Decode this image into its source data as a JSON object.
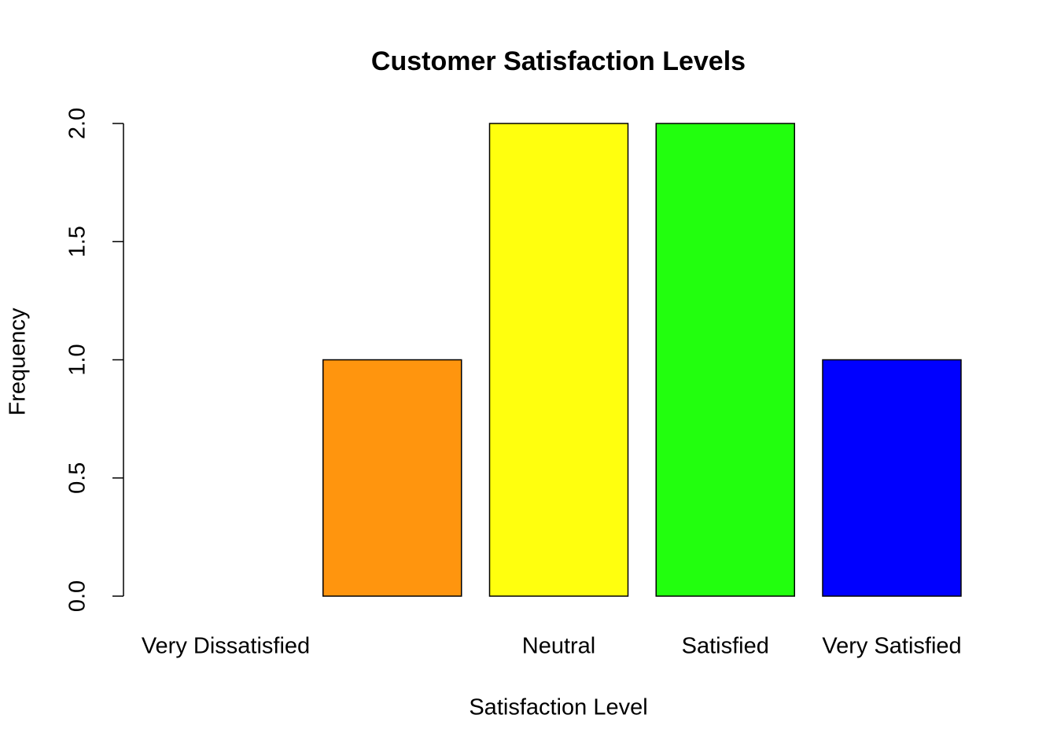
{
  "chart_data": {
    "type": "bar",
    "title": "Customer Satisfaction Levels",
    "x_label": "Satisfaction Level",
    "y_label": "Frequency",
    "categories": [
      "Very Dissatisfied",
      null,
      "Neutral",
      "Satisfied",
      "Very Satisfied"
    ],
    "values": [
      0,
      1,
      2,
      2,
      1
    ],
    "colors": [
      "#ff0000",
      "#ff950e",
      "#ffff0e",
      "#22ff0e",
      "#0000ff"
    ],
    "ylim": [
      0,
      2
    ],
    "yticks": [
      {
        "value": 0,
        "label": "0.0"
      },
      0.5,
      {
        "value": 1,
        "label": "1.0"
      },
      1.5,
      {
        "value": 2,
        "label": "2.0"
      }
    ]
  }
}
